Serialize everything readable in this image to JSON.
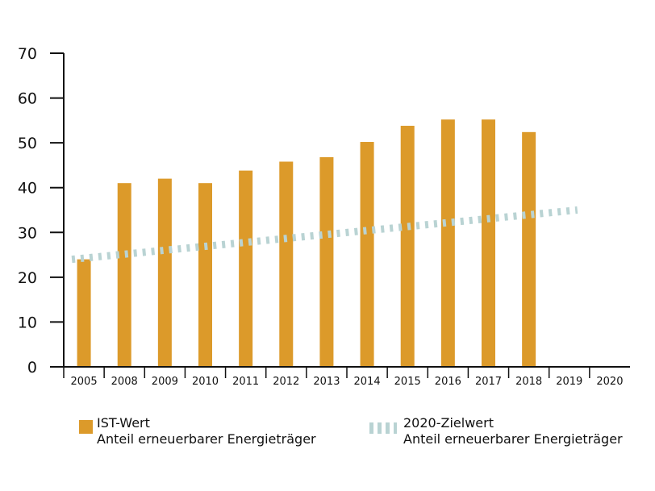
{
  "chart_data": {
    "type": "bar",
    "title": "",
    "xlabel": "",
    "ylabel": "",
    "ylim": [
      0,
      70
    ],
    "yticks": [
      0,
      10,
      20,
      30,
      40,
      50,
      60,
      70
    ],
    "categories": [
      "2005",
      "2008",
      "2009",
      "2010",
      "2011",
      "2012",
      "2013",
      "2014",
      "2015",
      "2016",
      "2017",
      "2018",
      "2019",
      "2020"
    ],
    "series": [
      {
        "name": "IST-Wert",
        "subtitle": "Anteil erneuerbarer Energieträger",
        "type": "bar",
        "color": "#dc9a2a",
        "values": [
          24,
          41,
          42,
          41,
          43.8,
          45.8,
          46.8,
          50.2,
          53.8,
          55.2,
          55.2,
          52.4,
          null,
          null
        ]
      },
      {
        "name": "2020-Zielwert",
        "subtitle": "Anteil erneuerbarer Energieträger",
        "type": "line",
        "style": "dashed",
        "color": "#b9d3d3",
        "start": {
          "category": "2005",
          "value": 24
        },
        "end": {
          "category": "2019",
          "value": 35
        }
      }
    ],
    "grid": false,
    "legend_position": "bottom"
  }
}
